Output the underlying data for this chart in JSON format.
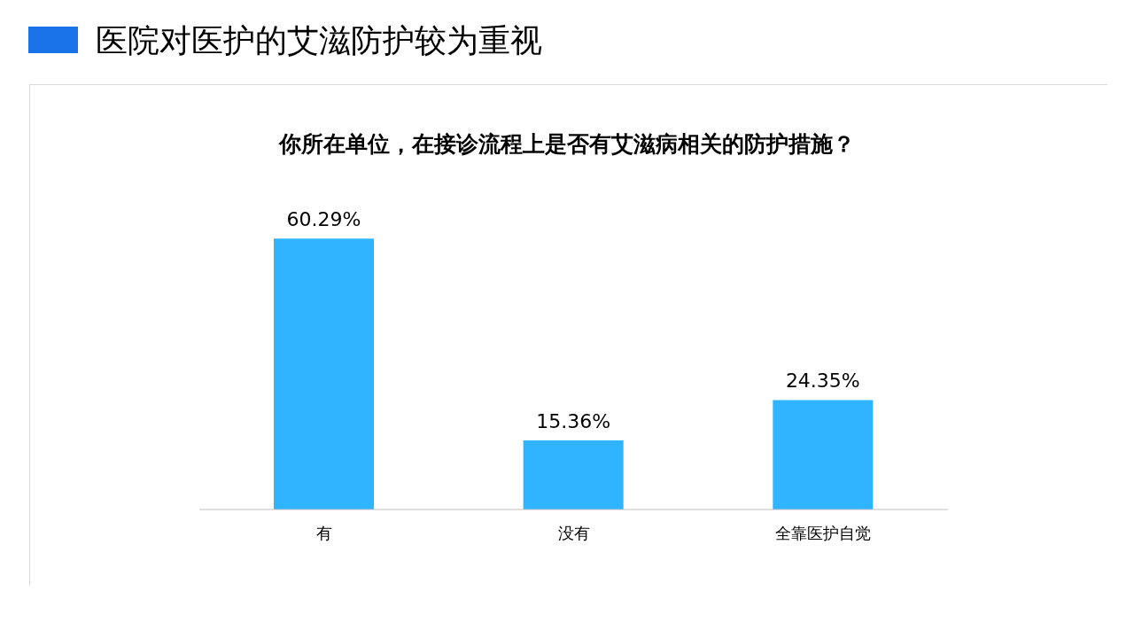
{
  "chart_data": {
    "type": "bar",
    "title": "医院对医护的艾滋防护较为重视",
    "subtitle": "你所在单位，在接诊流程上是否有艾滋病相关的防护措施？",
    "categories": [
      "有",
      "没有",
      "全靠医护自觉"
    ],
    "values": [
      60.29,
      15.36,
      24.35
    ],
    "value_labels": [
      "60.29%",
      "15.36%",
      "24.35%"
    ],
    "color": "#30b4ff",
    "tick_labels": "x",
    "grid": false,
    "legend": false
  }
}
